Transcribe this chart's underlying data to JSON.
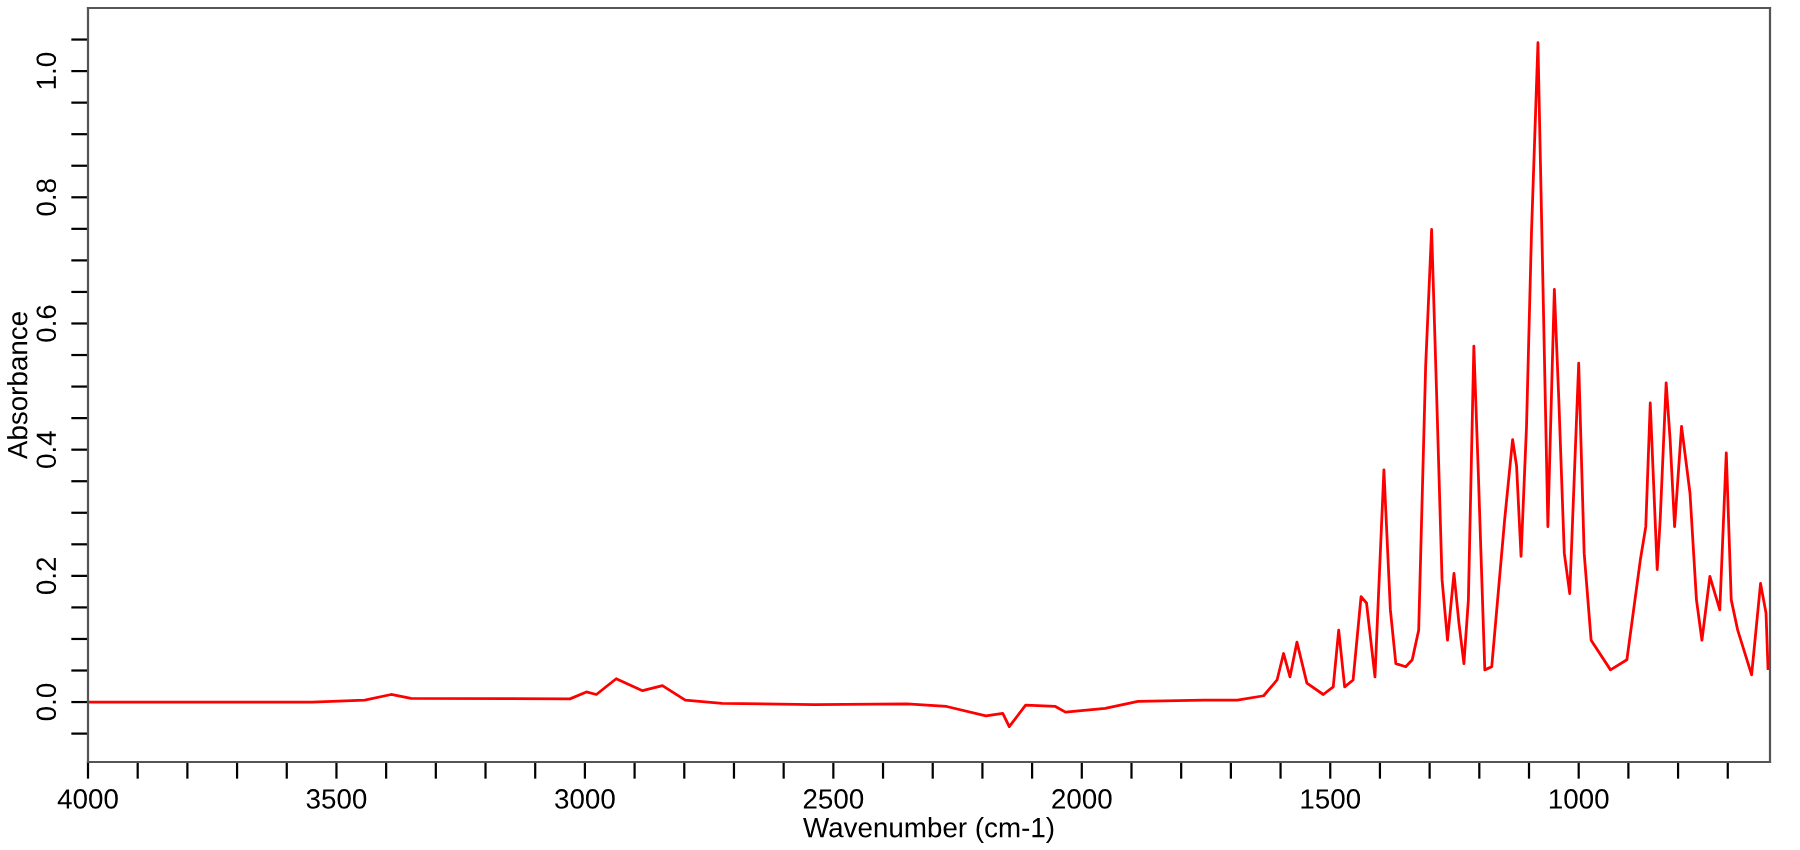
{
  "chart_data": {
    "type": "line",
    "xlabel": "Wavenumber (cm-1)",
    "ylabel": "Absorbance",
    "xlim": [
      4000,
      615
    ],
    "ylim": [
      -0.095,
      1.1
    ],
    "xticks": [
      4000,
      {
        "value": 3900,
        "label": null
      },
      {
        "value": 3800,
        "label": null
      },
      {
        "value": 3700,
        "label": null
      },
      {
        "value": 3600,
        "label": null
      },
      3500,
      {
        "value": 3400,
        "label": null
      },
      {
        "value": 3300,
        "label": null
      },
      {
        "value": 3200,
        "label": null
      },
      {
        "value": 3100,
        "label": null
      },
      3000,
      {
        "value": 2900,
        "label": null
      },
      {
        "value": 2800,
        "label": null
      },
      {
        "value": 2700,
        "label": null
      },
      {
        "value": 2600,
        "label": null
      },
      2500,
      {
        "value": 2400,
        "label": null
      },
      {
        "value": 2300,
        "label": null
      },
      {
        "value": 2200,
        "label": null
      },
      {
        "value": 2100,
        "label": null
      },
      2000,
      {
        "value": 1900,
        "label": null
      },
      {
        "value": 1800,
        "label": null
      },
      {
        "value": 1700,
        "label": null
      },
      {
        "value": 1600,
        "label": null
      },
      1500,
      {
        "value": 1400,
        "label": null
      },
      {
        "value": 1300,
        "label": null
      },
      {
        "value": 1200,
        "label": null
      },
      {
        "value": 1100,
        "label": null
      },
      1000,
      {
        "value": 900,
        "label": null
      },
      {
        "value": 800,
        "label": null
      },
      {
        "value": 700,
        "label": null
      }
    ],
    "yticks": [
      {
        "value": -0.05,
        "label": null
      },
      {
        "value": 0,
        "label": "0.0"
      },
      {
        "value": 0.05,
        "label": null
      },
      {
        "value": 0.1,
        "label": null
      },
      {
        "value": 0.15,
        "label": null
      },
      {
        "value": 0.2,
        "label": "0.2"
      },
      {
        "value": 0.25,
        "label": null
      },
      {
        "value": 0.3,
        "label": null
      },
      {
        "value": 0.35,
        "label": null
      },
      {
        "value": 0.4,
        "label": "0.4"
      },
      {
        "value": 0.45,
        "label": null
      },
      {
        "value": 0.5,
        "label": null
      },
      {
        "value": 0.55,
        "label": null
      },
      {
        "value": 0.6,
        "label": "0.6"
      },
      {
        "value": 0.65,
        "label": null
      },
      {
        "value": 0.7,
        "label": null
      },
      {
        "value": 0.75,
        "label": null
      },
      {
        "value": 0.8,
        "label": "0.8"
      },
      {
        "value": 0.85,
        "label": null
      },
      {
        "value": 0.9,
        "label": null
      },
      {
        "value": 0.95,
        "label": null
      },
      {
        "value": 1.0,
        "label": "1.0"
      },
      {
        "value": 1.05,
        "label": null
      }
    ],
    "grid": false,
    "series": [
      {
        "color": "#ff0000",
        "x": [
          4000,
          3549,
          3443,
          3390,
          3350,
          3030,
          2997,
          2977,
          2937,
          2884,
          2844,
          2798,
          2724,
          2538,
          2352,
          2272,
          2193,
          2159,
          2146,
          2113,
          2053,
          2033,
          1953,
          1887,
          1754,
          1687,
          1634,
          1607,
          1594,
          1581,
          1567,
          1547,
          1514,
          1494,
          1483,
          1471,
          1454,
          1438,
          1427,
          1410,
          1392,
          1379,
          1368,
          1348,
          1335,
          1322,
          1308,
          1296,
          1286,
          1275,
          1264,
          1251,
          1241,
          1231,
          1222,
          1211,
          1202,
          1189,
          1175,
          1149,
          1133,
          1125,
          1116,
          1105,
          1095,
          1082,
          1073,
          1062,
          1049,
          1040,
          1029,
          1018,
          1000,
          989,
          975,
          936,
          903,
          876,
          865,
          856,
          842,
          836,
          824,
          816,
          807,
          793,
          776,
          763,
          752,
          736,
          716,
          703,
          693,
          680,
          652,
          634,
          623,
          619
        ],
        "values": [
          0.0,
          0.0,
          0.003,
          0.012,
          0.006,
          0.005,
          0.016,
          0.012,
          0.037,
          0.018,
          0.026,
          0.003,
          -0.002,
          -0.004,
          -0.003,
          -0.007,
          -0.022,
          -0.018,
          -0.039,
          -0.005,
          -0.007,
          -0.016,
          -0.01,
          0.001,
          0.003,
          0.003,
          0.01,
          0.035,
          0.077,
          0.04,
          0.095,
          0.03,
          0.012,
          0.024,
          0.114,
          0.024,
          0.035,
          0.167,
          0.157,
          0.04,
          0.368,
          0.146,
          0.061,
          0.056,
          0.067,
          0.114,
          0.532,
          0.749,
          0.49,
          0.194,
          0.098,
          0.204,
          0.125,
          0.061,
          0.162,
          0.564,
          0.363,
          0.051,
          0.056,
          0.289,
          0.416,
          0.374,
          0.231,
          0.437,
          0.744,
          1.045,
          0.702,
          0.278,
          0.654,
          0.479,
          0.236,
          0.172,
          0.537,
          0.236,
          0.098,
          0.051,
          0.067,
          0.225,
          0.278,
          0.474,
          0.21,
          0.289,
          0.506,
          0.416,
          0.278,
          0.437,
          0.331,
          0.162,
          0.098,
          0.199,
          0.146,
          0.395,
          0.162,
          0.114,
          0.043,
          0.188,
          0.141,
          0.053
        ]
      }
    ]
  }
}
